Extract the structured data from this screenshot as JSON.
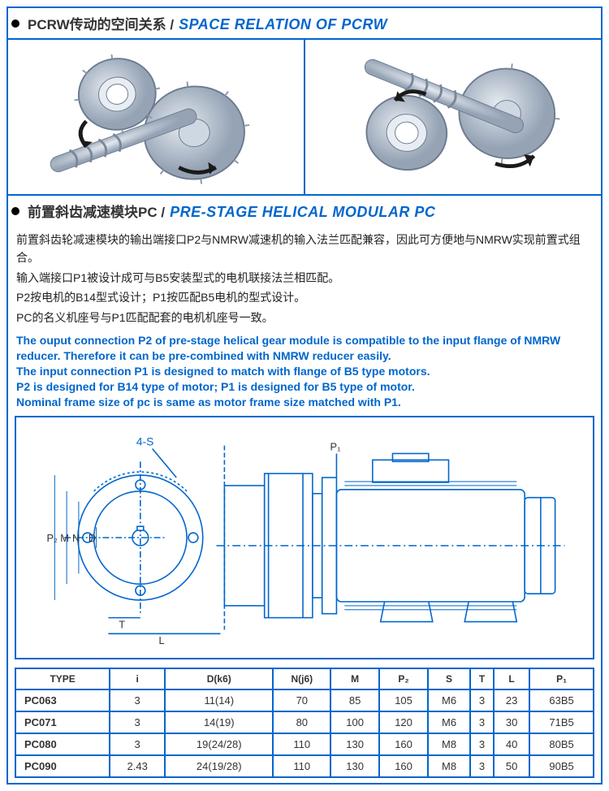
{
  "section1": {
    "title_cn": "PCRW传动的空间关系 /",
    "title_en": "SPACE RELATION OF PCRW"
  },
  "section2": {
    "title_cn": "前置斜齿减速模块PC /",
    "title_en": "PRE-STAGE HELICAL MODULAR PC"
  },
  "cn_paragraphs": [
    "前置斜齿轮减速模块的输出端接口P2与NMRW减速机的输入法兰匹配兼容，因此可方便地与NMRW实现前置式组合。",
    "输入端接口P1被设计成可与B5安装型式的电机联接法兰相匹配。",
    "P2按电机的B14型式设计；P1按匹配B5电机的型式设计。",
    "PC的名义机座号与P1匹配配套的电机机座号一致。"
  ],
  "en_paragraphs": [
    "The ouput connection P2 of pre-stage helical gear module is compatible to the  input flange of NMRW reducer. Therefore it can be pre-combined with NMRW reducer easily.",
    "The input connection P1 is designed to match with flange of B5 type motors.",
    "P2 is designed for B14 type of motor; P1 is designed for B5 type of motor.",
    "Nominal frame size of pc is same as motor frame size matched with P1."
  ],
  "drawing_labels": {
    "holes": "4-S",
    "p2": "P₂",
    "p1": "P₁",
    "m": "M",
    "n": "N",
    "d": "D",
    "t": "T",
    "l": "L"
  },
  "table": {
    "columns": [
      "TYPE",
      "i",
      "D(k6)",
      "N(j6)",
      "M",
      "P₂",
      "S",
      "T",
      "L",
      "P₁"
    ],
    "rows": [
      [
        "PC063",
        "3",
        "11(14)",
        "70",
        "85",
        "105",
        "M6",
        "3",
        "23",
        "63B5"
      ],
      [
        "PC071",
        "3",
        "14(19)",
        "80",
        "100",
        "120",
        "M6",
        "3",
        "30",
        "71B5"
      ],
      [
        "PC080",
        "3",
        "19(24/28)",
        "110",
        "130",
        "160",
        "M8",
        "3",
        "40",
        "80B5"
      ],
      [
        "PC090",
        "2.43",
        "24(19/28)",
        "110",
        "130",
        "160",
        "M8",
        "3",
        "50",
        "90B5"
      ]
    ],
    "first_col_align": "left"
  },
  "colors": {
    "border": "#0066cc",
    "accent": "#0066cc",
    "gear_fill": "#b8c4d0",
    "gear_stroke": "#6b7a8f",
    "arrow": "#1a1a1a",
    "drawing_stroke": "#0066cc"
  }
}
